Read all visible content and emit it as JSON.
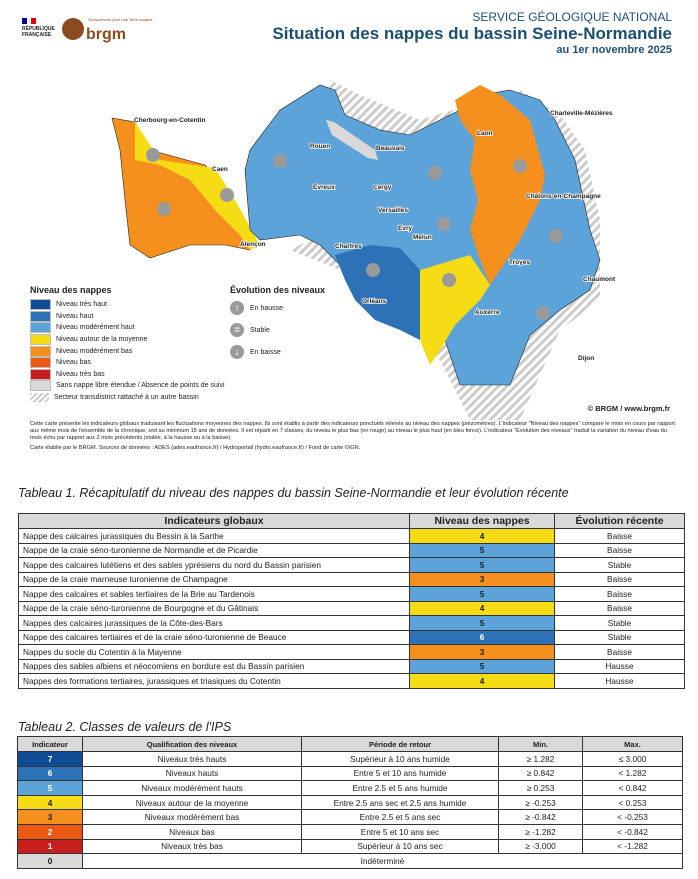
{
  "header": {
    "logo_rf": "RÉPUBLIQUE FRANÇAISE",
    "logo_brgm": "brgm",
    "brgm_tagline": "Géosciences pour une Terre durable",
    "service": "SERVICE GÉOLOGIQUE NATIONAL",
    "title": "Situation des nappes du bassin Seine-Normandie",
    "date": "au 1er novembre 2025"
  },
  "map": {
    "cities": [
      "Cherbourg-en-Cotentin",
      "Caen",
      "Rouen",
      "Beauvais",
      "Evreux",
      "Cergy",
      "Versailles",
      "Evry",
      "Melun",
      "Chartres",
      "Alençon",
      "Orléans",
      "Laon",
      "Charleville-Mézières",
      "Châlons-en-Champagne",
      "Troyes",
      "Chaumont",
      "Auxerre",
      "Dijon"
    ],
    "colors": {
      "very_high": "#0f4c96",
      "high": "#2d72b6",
      "mod_high": "#5ba3d8",
      "average": "#f5dc14",
      "mod_low": "#f5901e",
      "low": "#eb5a14",
      "very_low": "#c81e1e",
      "none": "#d9d9d9"
    },
    "copyright": "© BRGM / www.brgm.fr"
  },
  "legend": {
    "title": "Niveau des nappes",
    "items": [
      {
        "label": "Niveau très haut",
        "color": "#0f4c96"
      },
      {
        "label": "Niveau haut",
        "color": "#2d72b6"
      },
      {
        "label": "Niveau modérément haut",
        "color": "#5ba3d8"
      },
      {
        "label": "Niveau autour de la moyenne",
        "color": "#f5dc14"
      },
      {
        "label": "Niveau modérément bas",
        "color": "#f5901e"
      },
      {
        "label": "Niveau bas",
        "color": "#eb5a14"
      },
      {
        "label": "Niveau très bas",
        "color": "#c81e1e"
      },
      {
        "label": "Sans nappe libre étendue / Absence de points de suivi",
        "color": "#d9d9d9"
      },
      {
        "label": "Secteur transdistrict rattaché à un autre bassin",
        "color": "hatch"
      }
    ]
  },
  "evolution": {
    "title": "Évolution des niveaux",
    "items": [
      {
        "label": "En hausse",
        "icon": "arrow-up"
      },
      {
        "label": "Stable",
        "icon": "equals"
      },
      {
        "label": "En baisse",
        "icon": "arrow-down"
      }
    ]
  },
  "notes": {
    "p1": "Cette carte présente les indicateurs globaux traduisant les fluctuations moyennes des nappes. Ils sont établis à partir des indicateurs ponctuels relevés au niveau des nappes (piézomètres). L'indicateur \"Niveau des nappes\" compare le mois en cours par rapport aux même mois de l'ensemble de la chronique, soit au minimum 15 ans de données. Il est réparti en 7 classes, du niveau le plus bas (en rouge) au niveau le plus haut (en bleu foncé). L'indicateur \"Évolution des niveaux\" traduit la variation du niveau d'eau du mois échu par rapport aux 2 mois précédents (stable, à la hausse ou à la baisse).",
    "p2": "Carte établie par le BRGM. Sources de données : ADES (ades.eaufrance.fr) / Hydroportail (hydro.eaufrance.fr) / Fond de carte ©IGN."
  },
  "table1": {
    "caption": "Tableau 1. Récapitulatif du niveau des nappes du bassin Seine-Normandie et leur évolution récente",
    "headers": [
      "Indicateurs globaux",
      "Niveau des nappes",
      "Évolution récente"
    ],
    "rows": [
      [
        "Nappe des calcaires jurassiques du Bessin à la Sarthe",
        "4",
        "Baisse"
      ],
      [
        "Nappe de la craie séno-turonienne de Normandie et de Picardie",
        "5",
        "Baisse"
      ],
      [
        "Nappe des calcaires lutétiens et des sables yprésiens du nord du Bassin parisien",
        "5",
        "Stable"
      ],
      [
        "Nappe de la craie marneuse turonienne de Champagne",
        "3",
        "Baisse"
      ],
      [
        "Nappe des calcaires et sables tertiaires de la Brie au Tardenois",
        "5",
        "Baisse"
      ],
      [
        "Nappe de la craie séno-turonienne de Bourgogne et du Gâtinais",
        "4",
        "Baisse"
      ],
      [
        "Nappes des calcaires jurassiques de la Côte-des-Bars",
        "5",
        "Stable"
      ],
      [
        "Nappe des calcaires tertiaires et de la craie séno-turonienne de Beauce",
        "6",
        "Stable"
      ],
      [
        "Nappes du socle du Cotentin à la Mayenne",
        "3",
        "Baisse"
      ],
      [
        "Nappes des sables albiens et néocomiens en bordure est du Bassin parisien",
        "5",
        "Hausse"
      ],
      [
        "Nappes des formations tertiaires, jurassiques et triasiques du Cotentin",
        "4",
        "Hausse"
      ]
    ]
  },
  "table2": {
    "caption": "Tableau 2. Classes de valeurs de l'IPS",
    "headers": [
      "Indicateur",
      "Qualification des niveaux",
      "Période de retour",
      "Min.",
      "Max."
    ],
    "rows": [
      [
        "7",
        "Niveaux très hauts",
        "Supérieur à 10 ans humide",
        "≥ 1.282",
        "≤ 3.000"
      ],
      [
        "6",
        "Niveaux hauts",
        "Entre 5 et 10 ans humide",
        "≥ 0.842",
        "< 1.282"
      ],
      [
        "5",
        "Niveaux modérément hauts",
        "Entre 2.5 et 5 ans humide",
        "≥ 0.253",
        "< 0.842"
      ],
      [
        "4",
        "Niveaux autour de la moyenne",
        "Entre 2.5 ans sec et 2.5 ans humide",
        "≥ -0.253",
        "< 0.253"
      ],
      [
        "3",
        "Niveaux modérément bas",
        "Entre 2.5 et 5 ans sec",
        "≥ -0.842",
        "< -0.253"
      ],
      [
        "2",
        "Niveaux bas",
        "Entre 5 et 10 ans sec",
        "≥ -1.282",
        "< -0.842"
      ],
      [
        "1",
        "Niveaux très bas",
        "Supérieur à 10 ans sec",
        "≥ -3.000",
        "< -1.282"
      ]
    ],
    "last_row": [
      "0",
      "Indéterminé"
    ]
  }
}
